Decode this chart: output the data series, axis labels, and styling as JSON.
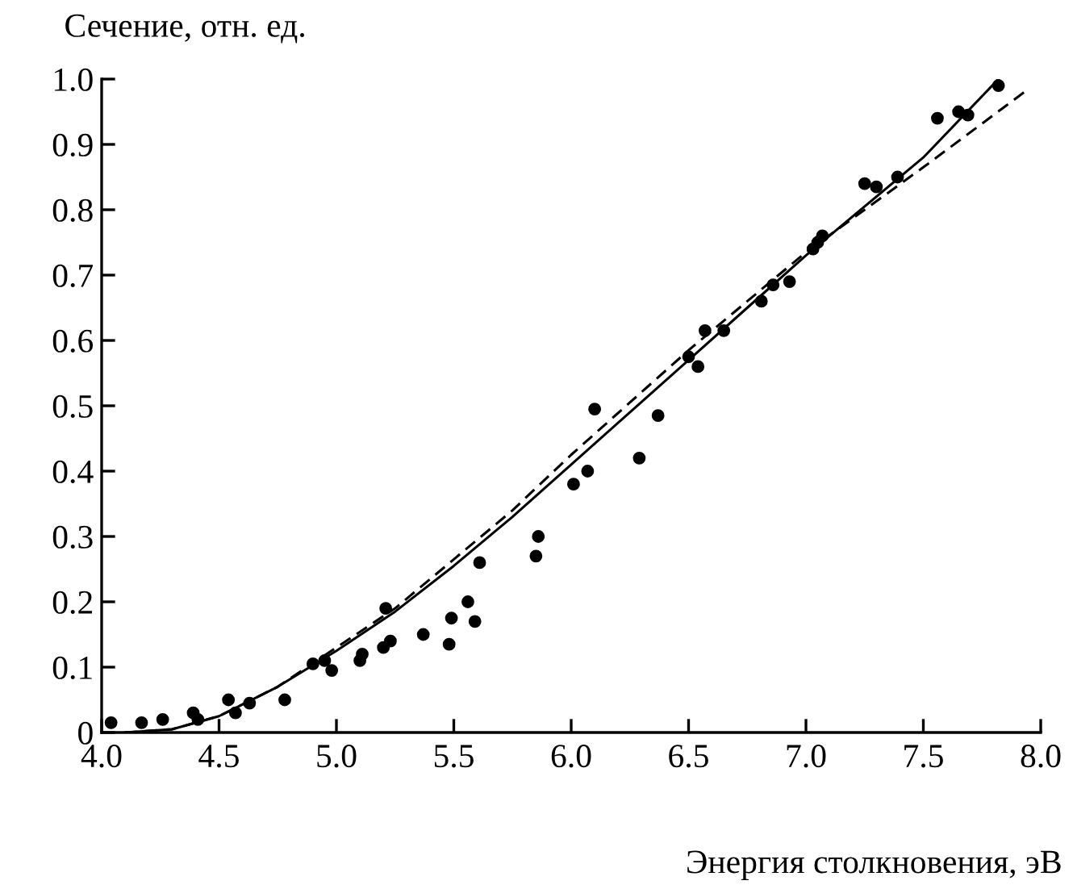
{
  "chart_data": {
    "type": "scatter",
    "xlabel": "Энергия столкновения, эВ",
    "ylabel": "Сечение, отн. ед.",
    "xlim": [
      4.0,
      8.0
    ],
    "ylim": [
      0,
      1.0
    ],
    "xticks": [
      {
        "value": 4.0,
        "label": "4.0"
      },
      4.5,
      {
        "value": 5.0,
        "label": "5.0"
      },
      5.5,
      {
        "value": 6.0,
        "label": "6.0"
      },
      6.5,
      {
        "value": 7.0,
        "label": "7.0"
      },
      7.5,
      {
        "value": 8.0,
        "label": "8.0"
      }
    ],
    "yticks": [
      0,
      0.1,
      0.2,
      0.3,
      0.4,
      0.5,
      0.6,
      0.7,
      0.8,
      0.9,
      {
        "value": 1.0,
        "label": "1.0"
      }
    ],
    "grid": false,
    "legend": false,
    "series": [
      {
        "color": "#000000",
        "marker": "circle",
        "x": [
          4.04,
          4.17,
          4.26,
          4.39,
          4.41,
          4.54,
          4.57,
          4.63,
          4.78,
          4.9,
          4.95,
          4.98,
          5.1,
          5.11,
          5.2,
          5.21,
          5.23,
          5.37,
          5.48,
          5.49,
          5.56,
          5.59,
          5.61,
          5.85,
          5.86,
          6.01,
          6.07,
          6.1,
          6.29,
          6.37,
          6.5,
          6.54,
          6.57,
          6.65,
          6.81,
          6.86,
          6.93,
          7.03,
          7.05,
          7.07,
          7.25,
          7.3,
          7.39,
          7.56,
          7.65,
          7.69,
          7.82
        ],
        "values": [
          0.015,
          0.015,
          0.02,
          0.03,
          0.02,
          0.05,
          0.03,
          0.045,
          0.05,
          0.105,
          0.11,
          0.095,
          0.11,
          0.12,
          0.13,
          0.19,
          0.14,
          0.15,
          0.135,
          0.175,
          0.2,
          0.17,
          0.26,
          0.27,
          0.3,
          0.38,
          0.4,
          0.495,
          0.42,
          0.485,
          0.575,
          0.56,
          0.615,
          0.615,
          0.66,
          0.685,
          0.69,
          0.74,
          0.75,
          0.76,
          0.84,
          0.835,
          0.85,
          0.94,
          0.95,
          0.945,
          0.99
        ]
      },
      {
        "type": "line",
        "color": "#000000",
        "line_style": "solid",
        "x": [
          4.1,
          4.3,
          4.5,
          4.75,
          5.0,
          5.25,
          5.5,
          5.75,
          6.0,
          6.25,
          6.5,
          6.75,
          7.0,
          7.25,
          7.5,
          7.82
        ],
        "values": [
          0,
          0.005,
          0.025,
          0.07,
          0.125,
          0.185,
          0.255,
          0.33,
          0.41,
          0.49,
          0.57,
          0.65,
          0.73,
          0.805,
          0.88,
          1.0
        ]
      },
      {
        "type": "line",
        "color": "#000000",
        "line_style": "dashed",
        "x": [
          4.1,
          4.3,
          4.5,
          4.75,
          5.0,
          5.25,
          5.5,
          5.75,
          6.0,
          6.25,
          6.5,
          6.75,
          7.0,
          7.25,
          7.5,
          7.93
        ],
        "values": [
          0,
          0.005,
          0.025,
          0.07,
          0.13,
          0.19,
          0.265,
          0.34,
          0.425,
          0.505,
          0.585,
          0.66,
          0.735,
          0.8,
          0.865,
          0.98
        ]
      }
    ]
  }
}
